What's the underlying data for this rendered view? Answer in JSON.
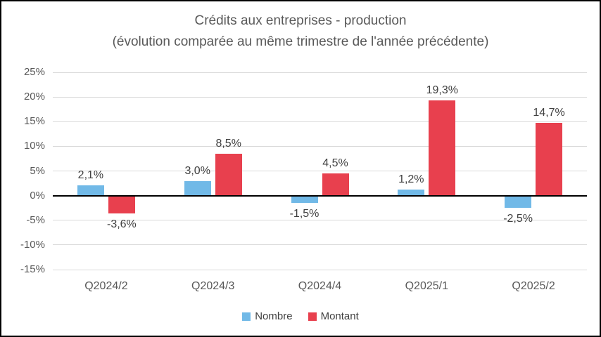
{
  "chart_data": {
    "type": "bar",
    "title": "Crédits aux entreprises - production",
    "subtitle": "(évolution comparée au même trimestre de l'année précédente)",
    "categories": [
      "Q2024/2",
      "Q2024/3",
      "Q2024/4",
      "Q2025/1",
      "Q2025/2"
    ],
    "series": [
      {
        "name": "Nombre",
        "color": "#71B9E7",
        "values": [
          2.1,
          3.0,
          -1.5,
          1.2,
          -2.5
        ],
        "display_labels": [
          "2,1%",
          "3,0%",
          "-1,5%",
          "1,2%",
          "-2,5%"
        ]
      },
      {
        "name": "Montant",
        "color": "#E8404E",
        "values": [
          -3.6,
          8.5,
          4.5,
          19.3,
          14.7
        ],
        "display_labels": [
          "-3,6%",
          "8,5%",
          "4,5%",
          "19,3%",
          "14,7%"
        ]
      }
    ],
    "y_axis": {
      "min": -15,
      "max": 25,
      "step": 5,
      "tick_labels": [
        "25%",
        "20%",
        "15%",
        "10%",
        "5%",
        "0%",
        "-5%",
        "-10%",
        "-15%"
      ]
    },
    "grid": true,
    "gridline_color": "#D9D9D9",
    "axis_line_color": "#000000",
    "tick_text_color": "#595959",
    "data_label_color": "#404040",
    "legend_position": "bottom",
    "legend_entries": [
      "Nombre",
      "Montant"
    ]
  }
}
